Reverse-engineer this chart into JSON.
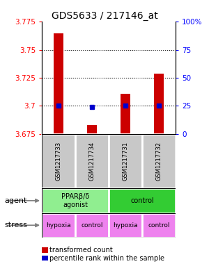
{
  "title": "GDS5633 / 217146_at",
  "samples": [
    "GSM1217733",
    "GSM1217734",
    "GSM1217731",
    "GSM1217732"
  ],
  "red_values": [
    3.765,
    3.683,
    3.711,
    3.729
  ],
  "blue_values": [
    3.7,
    3.699,
    3.7,
    3.7
  ],
  "ylim": [
    3.675,
    3.775
  ],
  "yticks": [
    3.675,
    3.7,
    3.725,
    3.75,
    3.775
  ],
  "ytick_labels": [
    "3.675",
    "3.7",
    "3.725",
    "3.75",
    "3.775"
  ],
  "right_yticks_pct": [
    0,
    25,
    50,
    75,
    100
  ],
  "right_ytick_labels": [
    "0",
    "25",
    "50",
    "75",
    "100%"
  ],
  "agent_groups": [
    {
      "label": "PPARβ/δ\nagonist",
      "cols": [
        0,
        1
      ],
      "color": "#90EE90"
    },
    {
      "label": "control",
      "cols": [
        2,
        3
      ],
      "color": "#33CC33"
    }
  ],
  "stress_labels": [
    "hypoxia",
    "control",
    "hypoxia",
    "control"
  ],
  "stress_color": "#EE82EE",
  "bar_color": "#CC0000",
  "dot_color": "#0000CC",
  "sample_bg_color": "#C8C8C8",
  "legend_red_label": "transformed count",
  "legend_blue_label": "percentile rank within the sample",
  "bar_width": 0.3
}
